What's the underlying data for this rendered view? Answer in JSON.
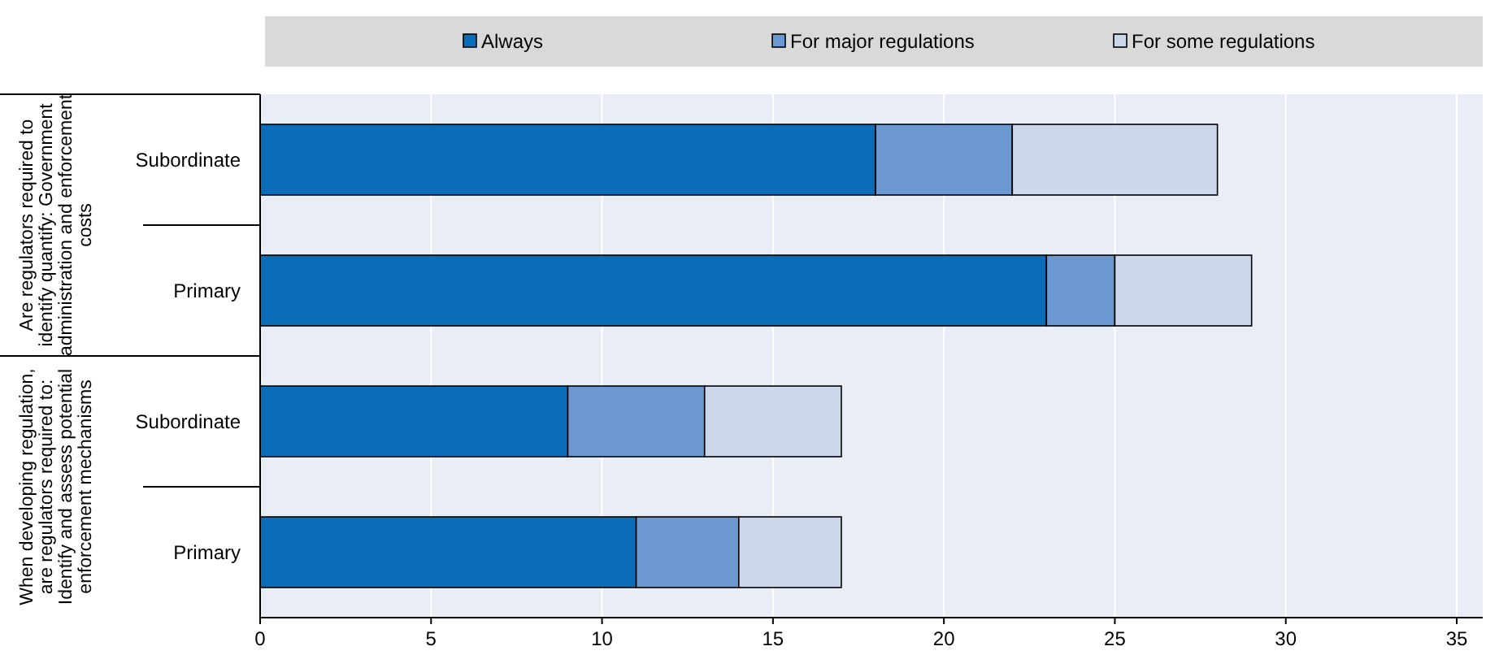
{
  "chart_data": {
    "type": "bar",
    "orientation": "horizontal",
    "stacked": true,
    "categories": [
      "Subordinate",
      "Primary",
      "Subordinate",
      "Primary"
    ],
    "series": [
      {
        "name": "Always",
        "color": "#0b6db7",
        "values": [
          18,
          23,
          9,
          11
        ]
      },
      {
        "name": "For major regulations",
        "color": "#6b98d0",
        "values": [
          4,
          2,
          4,
          3
        ]
      },
      {
        "name": "For some regulations",
        "color": "#cdd7ec",
        "values": [
          6,
          4,
          4,
          3
        ]
      }
    ],
    "annotations": [
      "Are regulators required to identify quantify: Government administration and enforcement costs",
      "When developing regulation, are regulators required to: Identify and assess potential enforcement mechanisms"
    ],
    "xlim": [
      0,
      35
    ],
    "xticks": [
      0,
      5,
      10,
      15,
      20,
      25,
      30,
      35
    ],
    "grid": "x",
    "legend": "top"
  }
}
